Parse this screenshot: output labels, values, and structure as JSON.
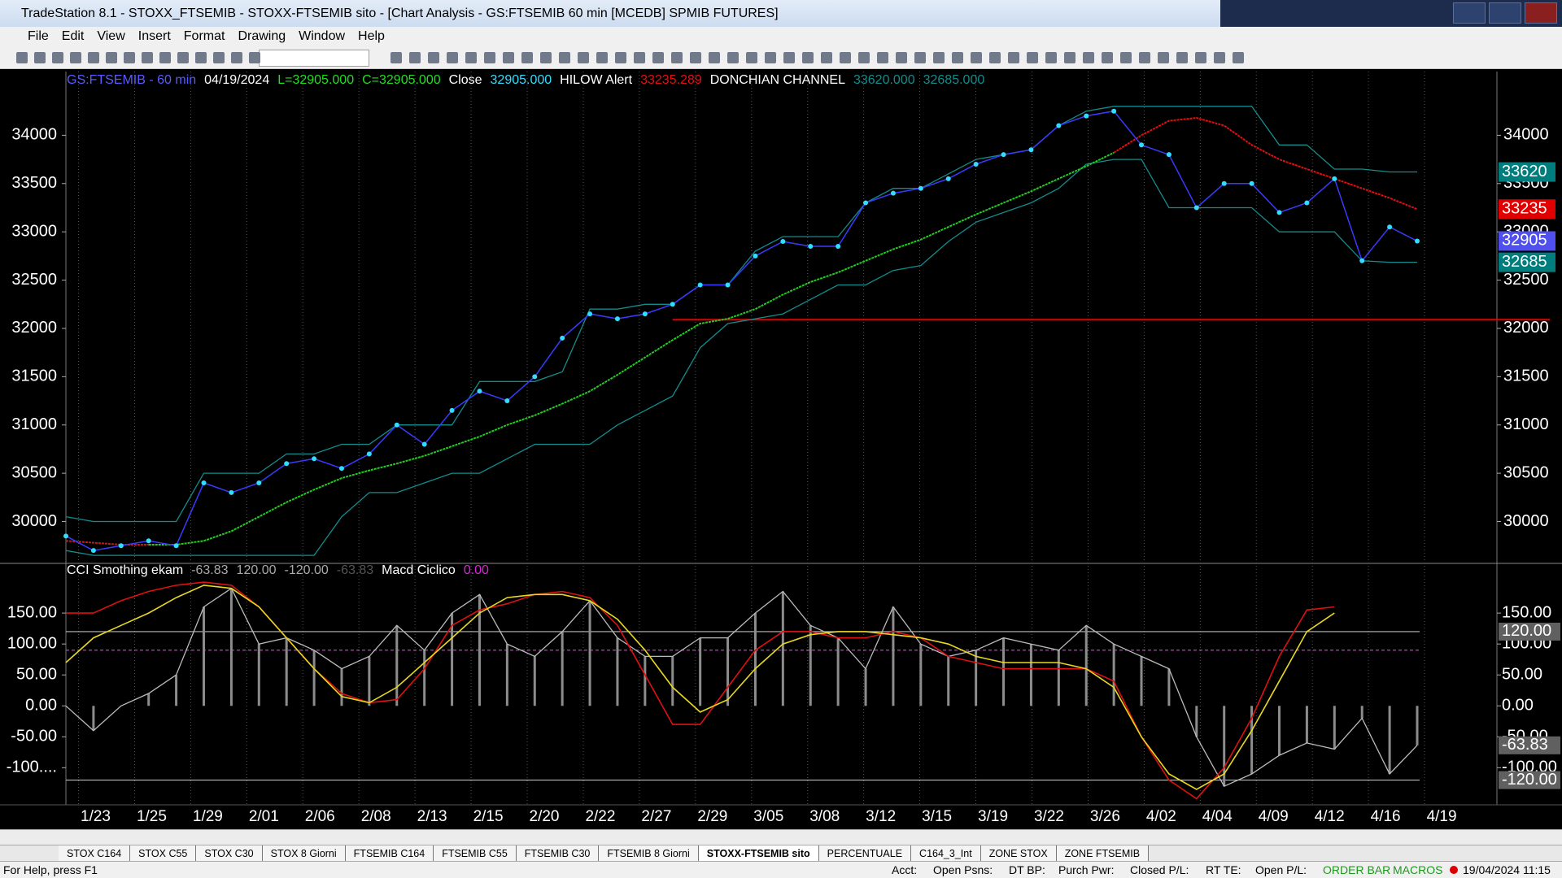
{
  "window": {
    "title": "TradeStation 8.1 - STOXX_FTSEMIB - STOXX-FTSEMIB sito - [Chart Analysis - GS:FTSEMIB  60 min  [MCEDB] SPMIB FUTURES]",
    "menu": [
      "File",
      "Edit",
      "View",
      "Insert",
      "Format",
      "Drawing",
      "Window",
      "Help"
    ]
  },
  "chart_data": [
    {
      "type": "line",
      "header": [
        {
          "text": "GS:FTSEMIB - 60 min",
          "color": "#5a5aff"
        },
        {
          "text": "04/19/2024",
          "color": "#ffffff"
        },
        {
          "text": "L=32905.000",
          "color": "#22dd22"
        },
        {
          "text": "C=32905.000",
          "color": "#22dd22"
        },
        {
          "text": "Close",
          "color": "#ffffff"
        },
        {
          "text": "32905.000",
          "color": "#33ddff"
        },
        {
          "text": "HILOW Alert",
          "color": "#ffffff"
        },
        {
          "text": "33235.289",
          "color": "#e01010"
        },
        {
          "text": "DONCHIAN CHANNEL",
          "color": "#ffffff"
        },
        {
          "text": "33620.000",
          "color": "#138c8c"
        },
        {
          "text": "32685.000",
          "color": "#138c8c"
        }
      ],
      "x_tick_labels": [
        "1/23",
        "1/25",
        "1/29",
        "2/01",
        "2/06",
        "2/08",
        "2/13",
        "2/15",
        "2/20",
        "2/22",
        "2/27",
        "2/29",
        "3/05",
        "3/08",
        "3/12",
        "3/15",
        "3/19",
        "3/22",
        "3/26",
        "4/02",
        "4/04",
        "4/09",
        "4/12",
        "4/16",
        "4/19"
      ],
      "ylim": [
        29575,
        34660
      ],
      "yticks": [
        30000,
        30500,
        31000,
        31500,
        32000,
        32500,
        33000,
        33500,
        34000
      ],
      "close": {
        "line_color": "#3a3aff",
        "dot_color": "#33ddff",
        "values": [
          29850,
          29700,
          29750,
          29800,
          29750,
          30400,
          30300,
          30400,
          30600,
          30650,
          30550,
          30700,
          31000,
          30800,
          31150,
          31350,
          31250,
          31500,
          31900,
          32150,
          32100,
          32150,
          32250,
          32450,
          32450,
          32750,
          32900,
          32850,
          32850,
          33300,
          33400,
          33450,
          33550,
          33700,
          33800,
          33850,
          34100,
          34200,
          34250,
          33900,
          33800,
          33250,
          33500,
          33500,
          33200,
          33300,
          33550,
          32700,
          33050,
          32905
        ]
      },
      "hilow": {
        "values": [
          29800,
          29780,
          29760,
          29760,
          29760,
          29800,
          29900,
          30050,
          30200,
          30330,
          30450,
          30530,
          30600,
          30680,
          30780,
          30880,
          31000,
          31100,
          31220,
          31350,
          31520,
          31700,
          31880,
          32050,
          32100,
          32200,
          32350,
          32480,
          32580,
          32700,
          32820,
          32920,
          33050,
          33180,
          33300,
          33420,
          33550,
          33680,
          33820,
          34000,
          34150,
          34180,
          34100,
          33900,
          33750,
          33650,
          33550,
          33450,
          33350,
          33235
        ],
        "point_colors": [
          "#e01010",
          "#e01010",
          "#e01010",
          "#e01010",
          "#22cc22",
          "#22cc22",
          "#22cc22",
          "#22cc22",
          "#22cc22",
          "#22cc22",
          "#22cc22",
          "#22cc22",
          "#22cc22",
          "#22cc22",
          "#22cc22",
          "#22cc22",
          "#22cc22",
          "#22cc22",
          "#22cc22",
          "#22cc22",
          "#22cc22",
          "#22cc22",
          "#22cc22",
          "#22cc22",
          "#22cc22",
          "#22cc22",
          "#22cc22",
          "#22cc22",
          "#22cc22",
          "#22cc22",
          "#22cc22",
          "#22cc22",
          "#22cc22",
          "#22cc22",
          "#22cc22",
          "#22cc22",
          "#22cc22",
          "#22cc22",
          "#22cc22",
          "#e01010",
          "#e01010",
          "#e01010",
          "#e01010",
          "#e01010",
          "#e01010",
          "#e01010",
          "#e01010",
          "#e01010",
          "#e01010",
          "#e01010"
        ]
      },
      "donchian": {
        "color": "#138c8c",
        "upper": [
          30050,
          30000,
          30000,
          30000,
          30000,
          30500,
          30500,
          30500,
          30700,
          30700,
          30800,
          30800,
          31000,
          31000,
          31000,
          31450,
          31450,
          31450,
          31550,
          32200,
          32200,
          32250,
          32250,
          32450,
          32450,
          32800,
          32950,
          32950,
          32950,
          33300,
          33450,
          33450,
          33600,
          33750,
          33800,
          33850,
          34100,
          34250,
          34300,
          34300,
          34300,
          34300,
          34300,
          34300,
          33900,
          33900,
          33650,
          33650,
          33620,
          33620
        ],
        "lower": [
          29700,
          29650,
          29650,
          29650,
          29650,
          29650,
          29650,
          29650,
          29650,
          29650,
          30050,
          30300,
          30300,
          30400,
          30500,
          30500,
          30650,
          30800,
          30800,
          30800,
          31000,
          31150,
          31300,
          31800,
          32050,
          32100,
          32150,
          32300,
          32450,
          32450,
          32600,
          32650,
          32900,
          33100,
          33200,
          33300,
          33450,
          33700,
          33750,
          33750,
          33250,
          33250,
          33250,
          33250,
          33000,
          33000,
          33000,
          32700,
          32685,
          32685
        ]
      },
      "hline": {
        "value": 32090,
        "color": "#e00000"
      },
      "last_labels": [
        {
          "value": 33620,
          "color": "#007d7d"
        },
        {
          "value": 33235,
          "color": "#e00000"
        },
        {
          "value": 32905,
          "color": "#5050ee"
        },
        {
          "value": 32685,
          "color": "#007d7d"
        }
      ]
    },
    {
      "type": "line",
      "header": [
        {
          "text": "CCI Smothing ekam",
          "color": "#ffffff"
        },
        {
          "text": "-63.83",
          "color": "#aaaaaa"
        },
        {
          "text": "120.00",
          "color": "#aaaaaa"
        },
        {
          "text": "-120.00",
          "color": "#aaaaaa"
        },
        {
          "text": "-63.83",
          "color": "#555555"
        },
        {
          "text": "Macd Ciclico",
          "color": "#ffffff"
        },
        {
          "text": "0.00",
          "color": "#e020e0"
        }
      ],
      "ylim": [
        -160,
        229
      ],
      "yticks": [
        {
          "value": 150,
          "label": "150.00"
        },
        {
          "value": 100,
          "label": "100.00"
        },
        {
          "value": 50,
          "label": "50.00"
        },
        {
          "value": 0,
          "label": "0.00"
        },
        {
          "value": -50,
          "label": "-50.00"
        },
        {
          "value": -100,
          "label": "-100...."
        }
      ],
      "yticks_right": [
        {
          "value": 150,
          "label": "150.00"
        },
        {
          "value": 100,
          "label": "100.00"
        },
        {
          "value": 50,
          "label": "50.00"
        },
        {
          "value": 0,
          "label": "0.00"
        },
        {
          "value": -50,
          "label": "-50.00"
        },
        {
          "value": -100,
          "label": "-100.00"
        }
      ],
      "histogram": {
        "color": "#8c8c8c",
        "line_color": "#bbbbbb",
        "values": [
          0,
          -40,
          0,
          20,
          50,
          160,
          190,
          100,
          110,
          90,
          60,
          80,
          130,
          90,
          150,
          180,
          100,
          80,
          120,
          170,
          110,
          80,
          80,
          110,
          110,
          150,
          185,
          130,
          110,
          60,
          160,
          100,
          80,
          90,
          110,
          100,
          90,
          130,
          100,
          80,
          60,
          -50,
          -130,
          -110,
          -80,
          -60,
          -70,
          -20,
          -110,
          -63.83
        ]
      },
      "series": [
        {
          "color": "#dd1111",
          "values": [
            150,
            150,
            170,
            185,
            195,
            200,
            195,
            160,
            110,
            60,
            20,
            5,
            10,
            60,
            130,
            155,
            165,
            180,
            185,
            175,
            130,
            50,
            -30,
            -30,
            30,
            90,
            120,
            120,
            110,
            110,
            120,
            110,
            80,
            70,
            60,
            60,
            60,
            60,
            40,
            -50,
            -120,
            -150,
            -100,
            -20,
            80,
            155,
            160,
            null,
            null,
            null
          ]
        },
        {
          "color": "#e8d820",
          "values": [
            70,
            110,
            130,
            150,
            175,
            195,
            190,
            160,
            110,
            60,
            15,
            5,
            30,
            70,
            110,
            150,
            175,
            180,
            180,
            170,
            140,
            90,
            30,
            -10,
            10,
            60,
            100,
            115,
            120,
            120,
            115,
            110,
            100,
            80,
            70,
            70,
            70,
            60,
            30,
            -50,
            -110,
            -135,
            -110,
            -40,
            40,
            120,
            150,
            null,
            null,
            null
          ]
        }
      ],
      "levels": [
        {
          "value": 120,
          "color": "#bbbbbb"
        },
        {
          "value": -120,
          "color": "#bbbbbb"
        },
        {
          "value": 90,
          "color": "#c040c0"
        }
      ],
      "last_labels": [
        {
          "value": 120,
          "label": "120.00",
          "color": "#606060"
        },
        {
          "value": -63.83,
          "label": "-63.83",
          "color": "#606060"
        },
        {
          "value": -120,
          "label": "-120.00",
          "color": "#606060"
        }
      ]
    }
  ],
  "tabs": [
    "STOX C164",
    "STOX C55",
    "STOX  C30",
    "STOX  8 Giorni",
    "FTSEMIB C164",
    "FTSEMIB C55",
    "FTSEMIB C30",
    "FTSEMIB  8 Giorni",
    "STOXX-FTSEMIB sito",
    "PERCENTUALE",
    "C164_3_Int",
    "ZONE STOX",
    "ZONE FTSEMIB"
  ],
  "active_tab": 8,
  "status": {
    "help": "For Help, press F1",
    "fields": [
      "Acct:",
      "Open Psns:",
      "DT BP:",
      "Purch Pwr:",
      "Closed P/L:",
      "RT TE:",
      "Open P/L:"
    ],
    "order_bar": "ORDER BAR",
    "macros": "MACROS",
    "datetime": "19/04/2024 11:15"
  }
}
